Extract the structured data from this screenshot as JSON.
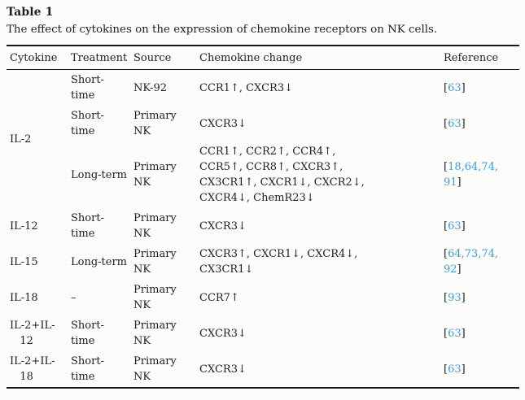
{
  "colors": {
    "link": "#3c9cd6",
    "text": "#1f1f1f",
    "rule": "#1a1a1a",
    "background": "#fcfcfb"
  },
  "figure": {
    "label": "Table 1",
    "caption": "The effect of cytokines on the expression of chemokine receptors on NK cells."
  },
  "table": {
    "headers": [
      "Cytokine",
      "Treatment",
      "Source",
      "Chemokine change",
      "Reference"
    ],
    "reference_brackets": [
      "[",
      "]"
    ],
    "rows": [
      {
        "cytokine": {
          "label": "IL-2",
          "span": 3
        },
        "treatment": "Short-\ntime",
        "source": "NK-92",
        "change": "CCR1↑, CXCR3↓",
        "reference": "63"
      },
      {
        "cytokine": null,
        "treatment": "Short-\ntime",
        "source": "Primary\nNK",
        "change": "CXCR3↓",
        "reference": "63"
      },
      {
        "cytokine": null,
        "treatment": "Long-term",
        "source": "Primary\nNK",
        "change": "CCR1↑, CCR2↑, CCR4↑,\nCCR5↑, CCR8↑, CXCR3↑,\nCX3CR1↑, CXCR1↓, CXCR2↓,\nCXCR4↓, ChemR23↓",
        "reference": "18,64,74,\n91"
      },
      {
        "cytokine": {
          "label": "IL-12",
          "span": 1
        },
        "treatment": "Short-\ntime",
        "source": "Primary\nNK",
        "change": "CXCR3↓",
        "reference": "63"
      },
      {
        "cytokine": {
          "label": "IL-15",
          "span": 1
        },
        "treatment": "Long-term",
        "source": "Primary\nNK",
        "change": "CXCR3↑, CXCR1↓, CXCR4↓,\nCX3CR1↓",
        "reference": "64,73,74,\n92"
      },
      {
        "cytokine": {
          "label": "IL-18",
          "span": 1
        },
        "treatment": "–",
        "source": "Primary\nNK",
        "change": "CCR7↑",
        "reference": "93"
      },
      {
        "cytokine": {
          "label": "IL-2+IL-\n   12",
          "span": 1
        },
        "treatment": "Short-\ntime",
        "source": "Primary\nNK",
        "change": "CXCR3↓",
        "reference": "63"
      },
      {
        "cytokine": {
          "label": "IL-2+IL-\n   18",
          "span": 1
        },
        "treatment": "Short-\ntime",
        "source": "Primary\nNK",
        "change": "CXCR3↓",
        "reference": "63"
      }
    ]
  }
}
